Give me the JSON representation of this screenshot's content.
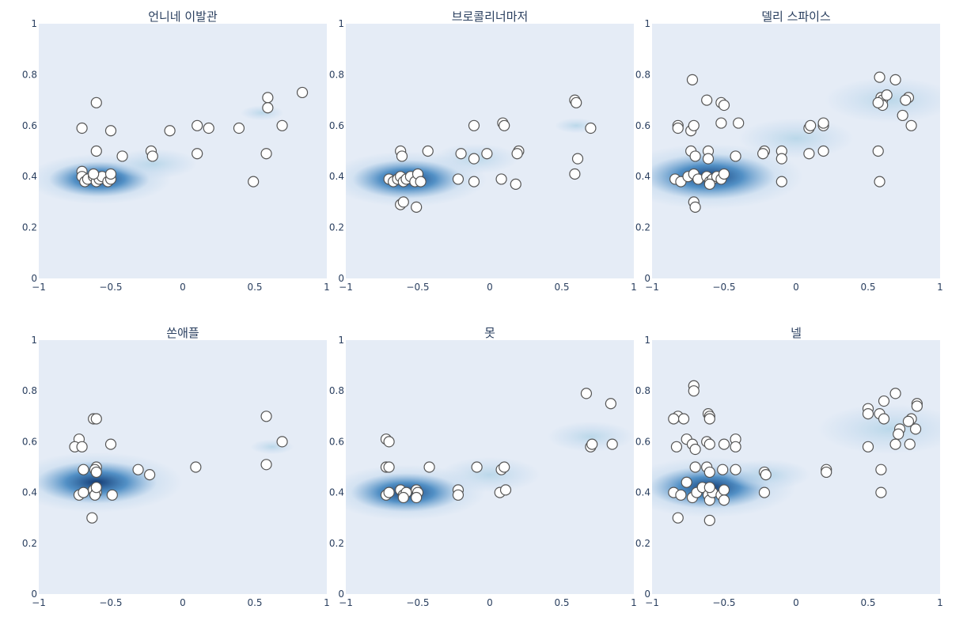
{
  "colors": {
    "plot_bg": "#e5ecf6",
    "density_light": "#c6dbef",
    "density_dark": "#08306b",
    "marker_fill": "#ffffff",
    "marker_stroke": "#555555",
    "text": "#2a3f5f"
  },
  "chart_data": [
    {
      "type": "scatter",
      "subtype": "scatter-with-2d-density-contour",
      "title": "언니네 이발관",
      "xlim": [
        -1,
        1
      ],
      "ylim": [
        0,
        1
      ],
      "x_ticks": [
        "−1",
        "−0.5",
        "0",
        "0.5",
        "1"
      ],
      "y_ticks": [
        "0",
        "0.2",
        "0.4",
        "0.6",
        "0.8",
        "1"
      ],
      "density": [
        {
          "cx": -0.58,
          "cy": 0.39,
          "w": 0.5
        },
        {
          "cx": -0.2,
          "cy": 0.45,
          "w": 0.3
        },
        {
          "cx": 0.55,
          "cy": 0.65,
          "w": 0.15
        }
      ],
      "points": [
        {
          "x": -0.7,
          "y": 0.59
        },
        {
          "x": -0.6,
          "y": 0.69
        },
        {
          "x": -0.5,
          "y": 0.58
        },
        {
          "x": -0.6,
          "y": 0.5
        },
        {
          "x": -0.42,
          "y": 0.48
        },
        {
          "x": -0.22,
          "y": 0.5
        },
        {
          "x": -0.21,
          "y": 0.48
        },
        {
          "x": -0.09,
          "y": 0.58
        },
        {
          "x": 0.1,
          "y": 0.6
        },
        {
          "x": 0.18,
          "y": 0.59
        },
        {
          "x": 0.1,
          "y": 0.49
        },
        {
          "x": 0.39,
          "y": 0.59
        },
        {
          "x": 0.49,
          "y": 0.38
        },
        {
          "x": 0.58,
          "y": 0.49
        },
        {
          "x": 0.59,
          "y": 0.71
        },
        {
          "x": 0.59,
          "y": 0.67
        },
        {
          "x": 0.69,
          "y": 0.6
        },
        {
          "x": 0.83,
          "y": 0.73
        },
        {
          "x": -0.7,
          "y": 0.42
        },
        {
          "x": -0.7,
          "y": 0.4
        },
        {
          "x": -0.68,
          "y": 0.38
        },
        {
          "x": -0.66,
          "y": 0.39
        },
        {
          "x": -0.62,
          "y": 0.4
        },
        {
          "x": -0.6,
          "y": 0.38
        },
        {
          "x": -0.58,
          "y": 0.39
        },
        {
          "x": -0.56,
          "y": 0.4
        },
        {
          "x": -0.52,
          "y": 0.38
        },
        {
          "x": -0.5,
          "y": 0.39
        },
        {
          "x": -0.5,
          "y": 0.41
        },
        {
          "x": -0.62,
          "y": 0.41
        }
      ]
    },
    {
      "type": "scatter",
      "subtype": "scatter-with-2d-density-contour",
      "title": "브로콜리너마저",
      "xlim": [
        -1,
        1
      ],
      "ylim": [
        0,
        1
      ],
      "x_ticks": [
        "−1",
        "−0.5",
        "0",
        "0.5",
        "1"
      ],
      "y_ticks": [
        "0",
        "0.2",
        "0.4",
        "0.6",
        "0.8",
        "1"
      ],
      "density": [
        {
          "cx": -0.57,
          "cy": 0.39,
          "w": 0.55
        },
        {
          "cx": -0.1,
          "cy": 0.47,
          "w": 0.3
        },
        {
          "cx": 0.6,
          "cy": 0.6,
          "w": 0.15
        }
      ],
      "points": [
        {
          "x": -0.7,
          "y": 0.39
        },
        {
          "x": -0.67,
          "y": 0.38
        },
        {
          "x": -0.64,
          "y": 0.39
        },
        {
          "x": -0.62,
          "y": 0.4
        },
        {
          "x": -0.6,
          "y": 0.38
        },
        {
          "x": -0.58,
          "y": 0.39
        },
        {
          "x": -0.55,
          "y": 0.4
        },
        {
          "x": -0.52,
          "y": 0.38
        },
        {
          "x": -0.5,
          "y": 0.41
        },
        {
          "x": -0.48,
          "y": 0.38
        },
        {
          "x": -0.62,
          "y": 0.5
        },
        {
          "x": -0.61,
          "y": 0.48
        },
        {
          "x": -0.43,
          "y": 0.5
        },
        {
          "x": -0.62,
          "y": 0.29
        },
        {
          "x": -0.6,
          "y": 0.3
        },
        {
          "x": -0.51,
          "y": 0.28
        },
        {
          "x": -0.2,
          "y": 0.49
        },
        {
          "x": -0.11,
          "y": 0.47
        },
        {
          "x": -0.02,
          "y": 0.49
        },
        {
          "x": -0.11,
          "y": 0.6
        },
        {
          "x": 0.09,
          "y": 0.61
        },
        {
          "x": 0.1,
          "y": 0.6
        },
        {
          "x": 0.2,
          "y": 0.5
        },
        {
          "x": 0.19,
          "y": 0.49
        },
        {
          "x": -0.22,
          "y": 0.39
        },
        {
          "x": -0.11,
          "y": 0.38
        },
        {
          "x": 0.08,
          "y": 0.39
        },
        {
          "x": 0.18,
          "y": 0.37
        },
        {
          "x": 0.59,
          "y": 0.7
        },
        {
          "x": 0.6,
          "y": 0.69
        },
        {
          "x": 0.7,
          "y": 0.59
        },
        {
          "x": 0.61,
          "y": 0.47
        },
        {
          "x": 0.59,
          "y": 0.41
        }
      ]
    },
    {
      "type": "scatter",
      "subtype": "scatter-with-2d-density-contour",
      "title": "델리 스파이스",
      "xlim": [
        -1,
        1
      ],
      "ylim": [
        0,
        1
      ],
      "x_ticks": [
        "−1",
        "−0.5",
        "0",
        "0.5",
        "1"
      ],
      "y_ticks": [
        "0",
        "0.2",
        "0.4",
        "0.6",
        "0.8",
        "1"
      ],
      "density": [
        {
          "cx": -0.6,
          "cy": 0.4,
          "w": 0.65
        },
        {
          "cx": 0.0,
          "cy": 0.55,
          "w": 0.4
        },
        {
          "cx": 0.65,
          "cy": 0.7,
          "w": 0.45
        }
      ],
      "points": [
        {
          "x": -0.72,
          "y": 0.78
        },
        {
          "x": -0.82,
          "y": 0.6
        },
        {
          "x": -0.82,
          "y": 0.59
        },
        {
          "x": -0.73,
          "y": 0.58
        },
        {
          "x": -0.71,
          "y": 0.6
        },
        {
          "x": -0.62,
          "y": 0.7
        },
        {
          "x": -0.52,
          "y": 0.69
        },
        {
          "x": -0.5,
          "y": 0.68
        },
        {
          "x": -0.52,
          "y": 0.61
        },
        {
          "x": -0.4,
          "y": 0.61
        },
        {
          "x": -0.73,
          "y": 0.5
        },
        {
          "x": -0.7,
          "y": 0.48
        },
        {
          "x": -0.61,
          "y": 0.5
        },
        {
          "x": -0.61,
          "y": 0.47
        },
        {
          "x": -0.42,
          "y": 0.48
        },
        {
          "x": -0.22,
          "y": 0.5
        },
        {
          "x": -0.23,
          "y": 0.49
        },
        {
          "x": -0.1,
          "y": 0.5
        },
        {
          "x": -0.1,
          "y": 0.47
        },
        {
          "x": -0.1,
          "y": 0.38
        },
        {
          "x": 0.09,
          "y": 0.59
        },
        {
          "x": 0.1,
          "y": 0.6
        },
        {
          "x": 0.19,
          "y": 0.6
        },
        {
          "x": 0.19,
          "y": 0.61
        },
        {
          "x": 0.09,
          "y": 0.49
        },
        {
          "x": 0.19,
          "y": 0.5
        },
        {
          "x": 0.58,
          "y": 0.79
        },
        {
          "x": 0.69,
          "y": 0.78
        },
        {
          "x": 0.59,
          "y": 0.71
        },
        {
          "x": 0.6,
          "y": 0.7
        },
        {
          "x": 0.63,
          "y": 0.72
        },
        {
          "x": 0.6,
          "y": 0.68
        },
        {
          "x": 0.57,
          "y": 0.69
        },
        {
          "x": 0.78,
          "y": 0.71
        },
        {
          "x": 0.76,
          "y": 0.7
        },
        {
          "x": 0.74,
          "y": 0.64
        },
        {
          "x": 0.8,
          "y": 0.6
        },
        {
          "x": 0.57,
          "y": 0.5
        },
        {
          "x": 0.58,
          "y": 0.38
        },
        {
          "x": -0.84,
          "y": 0.39
        },
        {
          "x": -0.8,
          "y": 0.38
        },
        {
          "x": -0.75,
          "y": 0.4
        },
        {
          "x": -0.71,
          "y": 0.41
        },
        {
          "x": -0.68,
          "y": 0.39
        },
        {
          "x": -0.62,
          "y": 0.4
        },
        {
          "x": -0.6,
          "y": 0.38
        },
        {
          "x": -0.58,
          "y": 0.39
        },
        {
          "x": -0.55,
          "y": 0.4
        },
        {
          "x": -0.52,
          "y": 0.39
        },
        {
          "x": -0.5,
          "y": 0.41
        },
        {
          "x": -0.71,
          "y": 0.3
        },
        {
          "x": -0.7,
          "y": 0.28
        },
        {
          "x": -0.6,
          "y": 0.37
        }
      ]
    },
    {
      "type": "scatter",
      "subtype": "scatter-with-2d-density-contour",
      "title": "쏜애플",
      "xlim": [
        -1,
        1
      ],
      "ylim": [
        0,
        1
      ],
      "x_ticks": [
        "−1",
        "−0.5",
        "0",
        "0.5",
        "1"
      ],
      "y_ticks": [
        "0",
        "0.2",
        "0.4",
        "0.6",
        "0.8",
        "1"
      ],
      "density": [
        {
          "cx": -0.6,
          "cy": 0.44,
          "w": 0.6
        },
        {
          "cx": 0.62,
          "cy": 0.58,
          "w": 0.15
        }
      ],
      "points": [
        {
          "x": -0.62,
          "y": 0.69
        },
        {
          "x": -0.6,
          "y": 0.69
        },
        {
          "x": -0.72,
          "y": 0.61
        },
        {
          "x": -0.75,
          "y": 0.58
        },
        {
          "x": -0.7,
          "y": 0.58
        },
        {
          "x": -0.5,
          "y": 0.59
        },
        {
          "x": -0.6,
          "y": 0.5
        },
        {
          "x": -0.61,
          "y": 0.49
        },
        {
          "x": -0.69,
          "y": 0.49
        },
        {
          "x": -0.6,
          "y": 0.48
        },
        {
          "x": -0.31,
          "y": 0.49
        },
        {
          "x": -0.23,
          "y": 0.47
        },
        {
          "x": 0.09,
          "y": 0.5
        },
        {
          "x": 0.58,
          "y": 0.7
        },
        {
          "x": 0.69,
          "y": 0.6
        },
        {
          "x": 0.58,
          "y": 0.51
        },
        {
          "x": -0.72,
          "y": 0.39
        },
        {
          "x": -0.69,
          "y": 0.4
        },
        {
          "x": -0.62,
          "y": 0.41
        },
        {
          "x": -0.6,
          "y": 0.4
        },
        {
          "x": -0.61,
          "y": 0.39
        },
        {
          "x": -0.49,
          "y": 0.39
        },
        {
          "x": -0.63,
          "y": 0.3
        },
        {
          "x": -0.6,
          "y": 0.42
        }
      ]
    },
    {
      "type": "scatter",
      "subtype": "scatter-with-2d-density-contour",
      "title": "못",
      "xlim": [
        -1,
        1
      ],
      "ylim": [
        0,
        1
      ],
      "x_ticks": [
        "−1",
        "−0.5",
        "0",
        "0.5",
        "1"
      ],
      "y_ticks": [
        "0",
        "0.2",
        "0.4",
        "0.6",
        "0.8",
        "1"
      ],
      "density": [
        {
          "cx": -0.58,
          "cy": 0.4,
          "w": 0.55
        },
        {
          "cx": 0.0,
          "cy": 0.47,
          "w": 0.35
        },
        {
          "cx": 0.7,
          "cy": 0.62,
          "w": 0.3
        }
      ],
      "points": [
        {
          "x": -0.72,
          "y": 0.61
        },
        {
          "x": -0.7,
          "y": 0.6
        },
        {
          "x": -0.72,
          "y": 0.5
        },
        {
          "x": -0.7,
          "y": 0.5
        },
        {
          "x": -0.42,
          "y": 0.5
        },
        {
          "x": -0.09,
          "y": 0.5
        },
        {
          "x": 0.08,
          "y": 0.49
        },
        {
          "x": 0.1,
          "y": 0.5
        },
        {
          "x": -0.22,
          "y": 0.41
        },
        {
          "x": -0.22,
          "y": 0.39
        },
        {
          "x": 0.07,
          "y": 0.4
        },
        {
          "x": 0.11,
          "y": 0.41
        },
        {
          "x": 0.67,
          "y": 0.79
        },
        {
          "x": 0.84,
          "y": 0.75
        },
        {
          "x": 0.7,
          "y": 0.58
        },
        {
          "x": 0.71,
          "y": 0.59
        },
        {
          "x": 0.85,
          "y": 0.59
        },
        {
          "x": -0.72,
          "y": 0.39
        },
        {
          "x": -0.7,
          "y": 0.4
        },
        {
          "x": -0.62,
          "y": 0.41
        },
        {
          "x": -0.6,
          "y": 0.39
        },
        {
          "x": -0.58,
          "y": 0.4
        },
        {
          "x": -0.51,
          "y": 0.41
        },
        {
          "x": -0.5,
          "y": 0.4
        },
        {
          "x": -0.51,
          "y": 0.38
        },
        {
          "x": -0.6,
          "y": 0.38
        }
      ]
    },
    {
      "type": "scatter",
      "subtype": "scatter-with-2d-density-contour",
      "title": "넬",
      "xlim": [
        -1,
        1
      ],
      "ylim": [
        0,
        1
      ],
      "x_ticks": [
        "−1",
        "−0.5",
        "0",
        "0.5",
        "1"
      ],
      "y_ticks": [
        "0",
        "0.2",
        "0.4",
        "0.6",
        "0.8",
        "1"
      ],
      "density": [
        {
          "cx": -0.6,
          "cy": 0.42,
          "w": 0.6
        },
        {
          "cx": -0.2,
          "cy": 0.47,
          "w": 0.3
        },
        {
          "cx": 0.65,
          "cy": 0.65,
          "w": 0.5
        }
      ],
      "points": [
        {
          "x": -0.71,
          "y": 0.82
        },
        {
          "x": -0.71,
          "y": 0.8
        },
        {
          "x": -0.82,
          "y": 0.7
        },
        {
          "x": -0.85,
          "y": 0.69
        },
        {
          "x": -0.78,
          "y": 0.69
        },
        {
          "x": -0.61,
          "y": 0.71
        },
        {
          "x": -0.6,
          "y": 0.7
        },
        {
          "x": -0.6,
          "y": 0.69
        },
        {
          "x": -0.83,
          "y": 0.58
        },
        {
          "x": -0.76,
          "y": 0.61
        },
        {
          "x": -0.72,
          "y": 0.59
        },
        {
          "x": -0.7,
          "y": 0.57
        },
        {
          "x": -0.62,
          "y": 0.6
        },
        {
          "x": -0.6,
          "y": 0.59
        },
        {
          "x": -0.5,
          "y": 0.59
        },
        {
          "x": -0.42,
          "y": 0.61
        },
        {
          "x": -0.42,
          "y": 0.58
        },
        {
          "x": -0.7,
          "y": 0.5
        },
        {
          "x": -0.62,
          "y": 0.5
        },
        {
          "x": -0.6,
          "y": 0.48
        },
        {
          "x": -0.51,
          "y": 0.49
        },
        {
          "x": -0.42,
          "y": 0.49
        },
        {
          "x": -0.22,
          "y": 0.48
        },
        {
          "x": -0.21,
          "y": 0.47
        },
        {
          "x": -0.22,
          "y": 0.4
        },
        {
          "x": 0.21,
          "y": 0.49
        },
        {
          "x": 0.21,
          "y": 0.48
        },
        {
          "x": 0.69,
          "y": 0.79
        },
        {
          "x": 0.61,
          "y": 0.76
        },
        {
          "x": 0.84,
          "y": 0.75
        },
        {
          "x": 0.84,
          "y": 0.74
        },
        {
          "x": 0.5,
          "y": 0.73
        },
        {
          "x": 0.5,
          "y": 0.71
        },
        {
          "x": 0.58,
          "y": 0.71
        },
        {
          "x": 0.61,
          "y": 0.69
        },
        {
          "x": 0.8,
          "y": 0.69
        },
        {
          "x": 0.78,
          "y": 0.68
        },
        {
          "x": 0.72,
          "y": 0.65
        },
        {
          "x": 0.71,
          "y": 0.63
        },
        {
          "x": 0.83,
          "y": 0.65
        },
        {
          "x": 0.69,
          "y": 0.59
        },
        {
          "x": 0.79,
          "y": 0.59
        },
        {
          "x": 0.5,
          "y": 0.58
        },
        {
          "x": 0.59,
          "y": 0.49
        },
        {
          "x": 0.59,
          "y": 0.4
        },
        {
          "x": -0.85,
          "y": 0.4
        },
        {
          "x": -0.8,
          "y": 0.39
        },
        {
          "x": -0.76,
          "y": 0.44
        },
        {
          "x": -0.72,
          "y": 0.38
        },
        {
          "x": -0.69,
          "y": 0.4
        },
        {
          "x": -0.65,
          "y": 0.42
        },
        {
          "x": -0.61,
          "y": 0.39
        },
        {
          "x": -0.6,
          "y": 0.37
        },
        {
          "x": -0.58,
          "y": 0.4
        },
        {
          "x": -0.52,
          "y": 0.39
        },
        {
          "x": -0.5,
          "y": 0.41
        },
        {
          "x": -0.5,
          "y": 0.37
        },
        {
          "x": -0.82,
          "y": 0.3
        },
        {
          "x": -0.6,
          "y": 0.29
        },
        {
          "x": -0.6,
          "y": 0.42
        }
      ]
    }
  ]
}
